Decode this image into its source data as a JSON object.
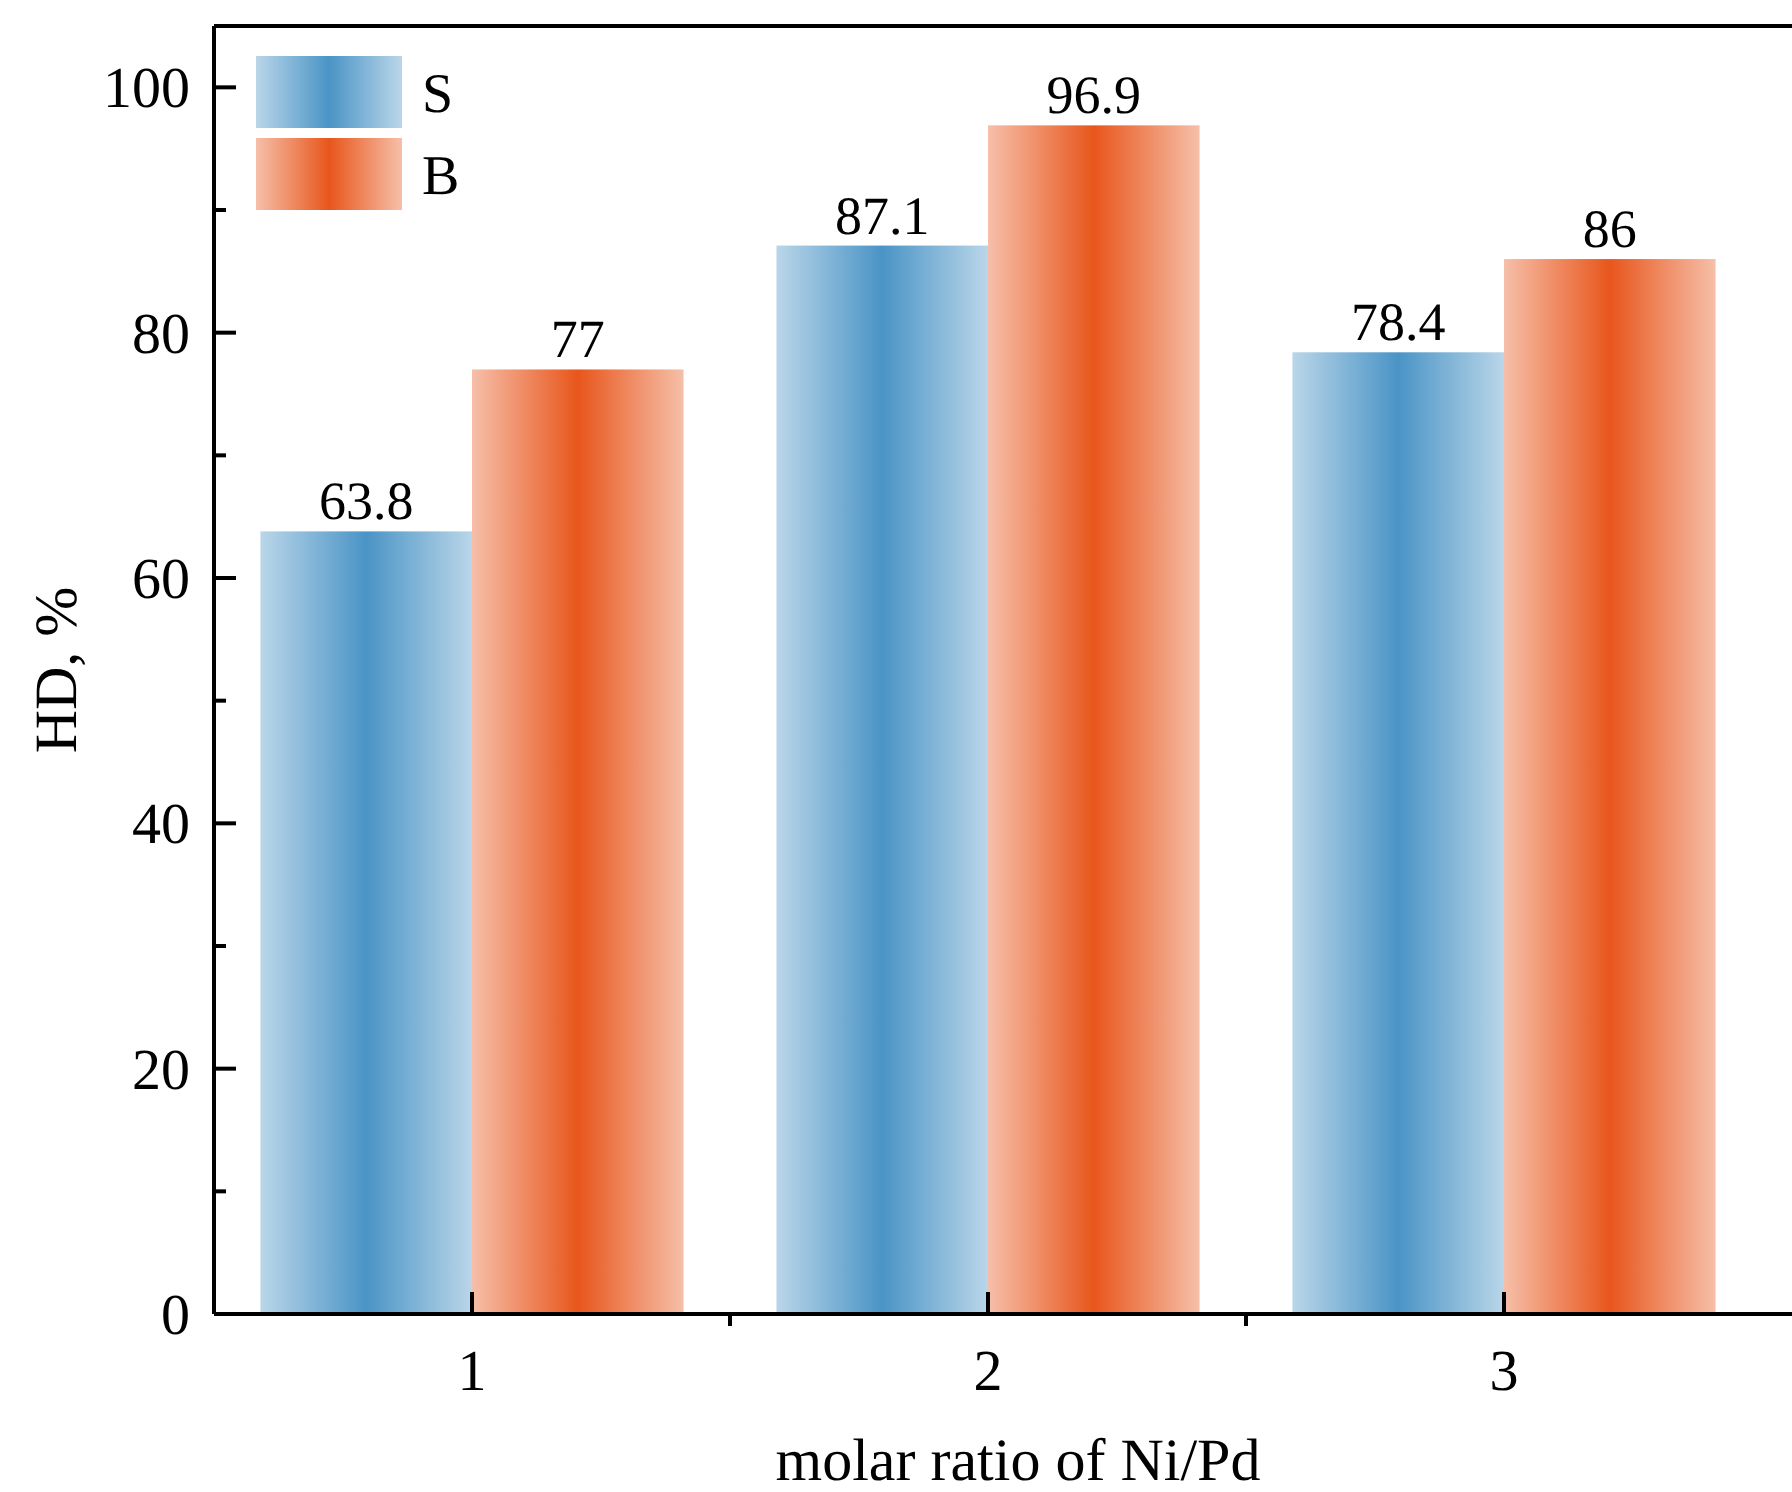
{
  "chart_data": {
    "type": "bar",
    "xlabel": "molar ratio of Ni/Pd",
    "ylabel": "HD, %",
    "categories": [
      "1",
      "2",
      "3"
    ],
    "series": [
      {
        "name": "S",
        "color": "#4a94c6",
        "values": [
          63.8,
          87.1,
          78.4
        ]
      },
      {
        "name": "B",
        "color": "#e8561c",
        "values": [
          77,
          96.9,
          86
        ]
      }
    ],
    "ylim": [
      0,
      105
    ],
    "yticks": [
      0,
      {
        "value": 10,
        "label": null
      },
      20,
      {
        "value": 30,
        "label": null
      },
      40,
      {
        "value": 50,
        "label": null
      },
      60,
      {
        "value": 70,
        "label": null
      },
      80,
      {
        "value": 90,
        "label": null
      },
      100
    ],
    "data_labels": true,
    "legend": "top left",
    "grid": false
  }
}
